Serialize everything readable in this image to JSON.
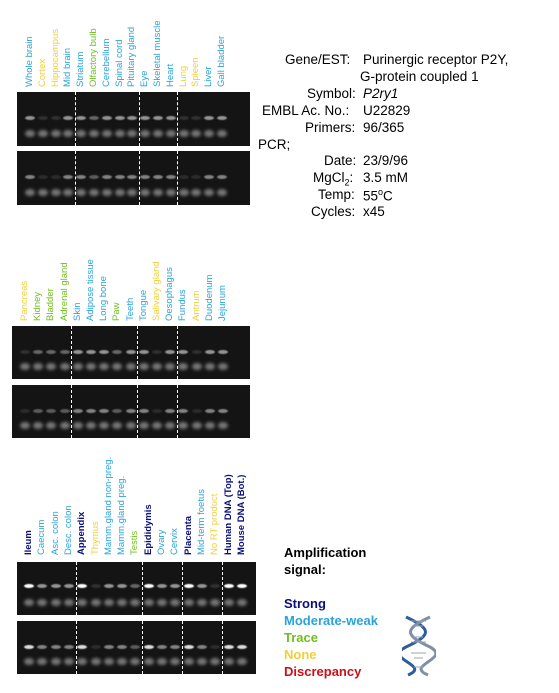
{
  "colors": {
    "strong": "#0a0f7a",
    "moderate": "#29a3d9",
    "trace": "#6fbf1f",
    "none": "#f0cf3a",
    "discrepancy": "#c8101a"
  },
  "panels": [
    {
      "lanes": [
        {
          "label": "Whole brain",
          "level": "moderate"
        },
        {
          "label": "Cortex",
          "level": "none"
        },
        {
          "label": "Hippocampus",
          "level": "none"
        },
        {
          "label": "Mid brain",
          "level": "moderate"
        },
        {
          "label": "Striatum",
          "level": "moderate"
        },
        {
          "label": "Olfactory bulb",
          "level": "trace"
        },
        {
          "label": "Cerebellum",
          "level": "moderate"
        },
        {
          "label": "Spinal cord",
          "level": "moderate"
        },
        {
          "label": "Pituitary gland",
          "level": "moderate"
        },
        {
          "label": "Eye",
          "level": "moderate"
        },
        {
          "label": "Skeletal muscle",
          "level": "moderate"
        },
        {
          "label": "Heart",
          "level": "moderate"
        },
        {
          "label": "Lung",
          "level": "none"
        },
        {
          "label": "Spleen",
          "level": "none"
        },
        {
          "label": "Liver",
          "level": "moderate"
        },
        {
          "label": "Gall bladder",
          "level": "moderate"
        }
      ]
    },
    {
      "lanes": [
        {
          "label": "Pancreas",
          "level": "none"
        },
        {
          "label": "Kidney",
          "level": "trace"
        },
        {
          "label": "Bladder",
          "level": "trace"
        },
        {
          "label": "Adrenal gland",
          "level": "trace"
        },
        {
          "label": "Skin",
          "level": "moderate"
        },
        {
          "label": "Adipose tissue",
          "level": "moderate"
        },
        {
          "label": "Long bone",
          "level": "moderate"
        },
        {
          "label": "Paw",
          "level": "trace"
        },
        {
          "label": "Teeth",
          "level": "moderate"
        },
        {
          "label": "Tongue",
          "level": "moderate"
        },
        {
          "label": "Salivary gland",
          "level": "none"
        },
        {
          "label": "Oesophagus",
          "level": "moderate"
        },
        {
          "label": "Fundus",
          "level": "moderate"
        },
        {
          "label": "Antrum",
          "level": "none"
        },
        {
          "label": "Duodenum",
          "level": "moderate"
        },
        {
          "label": "Jejunum",
          "level": "moderate"
        }
      ]
    },
    {
      "lanes": [
        {
          "label": "Ileum",
          "level": "strong"
        },
        {
          "label": "Caecum",
          "level": "moderate"
        },
        {
          "label": "Asc. colon",
          "level": "moderate"
        },
        {
          "label": "Desc. colon",
          "level": "moderate"
        },
        {
          "label": "Appendix",
          "level": "strong"
        },
        {
          "label": "Thymus",
          "level": "none"
        },
        {
          "label": "Mamm.gland non-preg.",
          "level": "moderate"
        },
        {
          "label": "Mamm.gland preg.",
          "level": "moderate"
        },
        {
          "label": "Testis",
          "level": "trace"
        },
        {
          "label": "Epididymis",
          "level": "strong"
        },
        {
          "label": "Ovary",
          "level": "moderate"
        },
        {
          "label": "Cervix",
          "level": "moderate"
        },
        {
          "label": "Placenta",
          "level": "strong"
        },
        {
          "label": "Mid-term foetus",
          "level": "moderate"
        },
        {
          "label": "No RT product",
          "level": "none"
        },
        {
          "label": "Human DNA (Top)",
          "level": "strong"
        },
        {
          "label": "Mouse DNA (Bot.)",
          "level": "strong"
        }
      ]
    }
  ],
  "info": {
    "gene_key": "Gene/EST:",
    "gene_val1": "Purinergic receptor P2Y,",
    "gene_val2": "G-protein coupled 1",
    "symbol_key": "Symbol:",
    "symbol_val": "P2ry1",
    "embl_key": "EMBL Ac. No.:",
    "embl_val": "U22829",
    "primers_key": "Primers:",
    "primers_val": "96/365",
    "pcr_label": "PCR;",
    "date_key": "Date:",
    "date_val": "23/9/96",
    "mgcl_key_a": "MgCl",
    "mgcl_key_sub": "2",
    "mgcl_key_b": ":",
    "mgcl_val": "3.5 mM",
    "temp_key": "Temp:",
    "temp_val_a": "55",
    "temp_val_sup": "o",
    "temp_val_b": "C",
    "cycles_key": "Cycles:",
    "cycles_val": "x45"
  },
  "legend": {
    "title1": "Amplification",
    "title2": "signal:",
    "strong": "Strong",
    "moderate": "Moderate-weak",
    "trace": "Trace",
    "none": "None",
    "discrepancy": "Discrepancy"
  }
}
